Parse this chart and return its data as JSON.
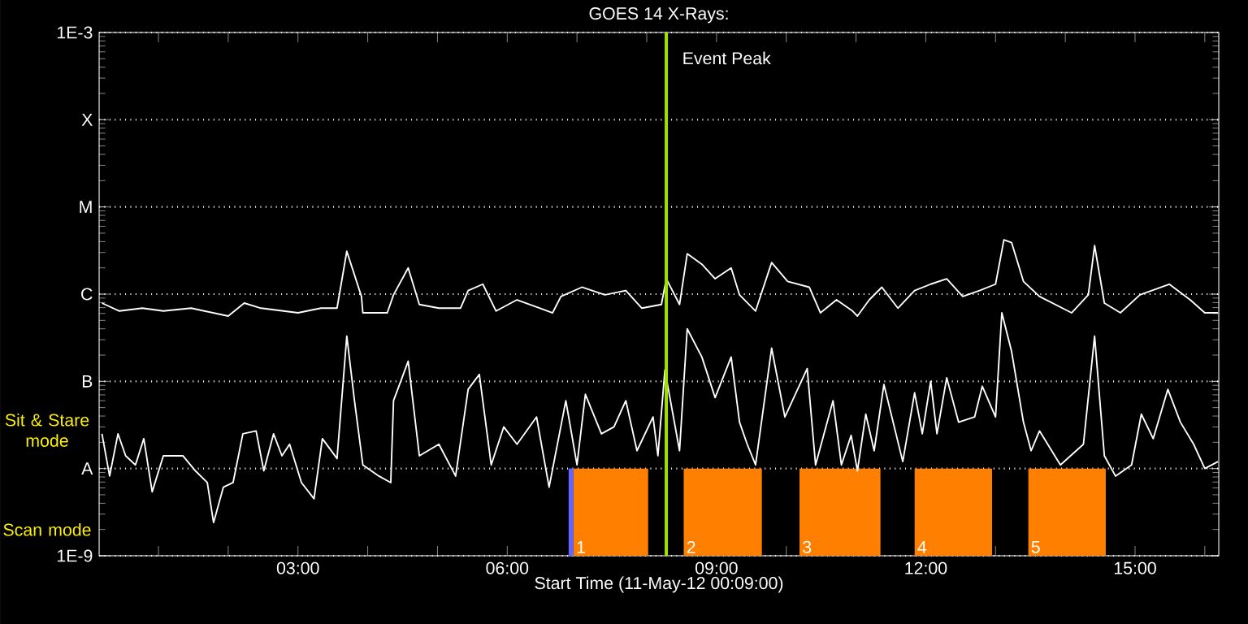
{
  "chart_data": {
    "type": "line",
    "title": "GOES 14 X-Rays:",
    "xlabel": "Start Time (11-May-12 00:09:00)",
    "xlim": [
      0.15,
      16.2
    ],
    "ylim": [
      1e-09,
      0.001
    ],
    "log": true,
    "grid": "y",
    "line_style": "solid",
    "xticks": [
      {
        "value": 1,
        "label": null
      },
      {
        "value": 2,
        "label": null
      },
      {
        "value": 3,
        "label": "03:00"
      },
      {
        "value": 4,
        "label": null
      },
      {
        "value": 5,
        "label": null
      },
      {
        "value": 6,
        "label": "06:00"
      },
      {
        "value": 7,
        "label": null
      },
      {
        "value": 8,
        "label": null
      },
      {
        "value": 9,
        "label": "09:00"
      },
      {
        "value": 10,
        "label": null
      },
      {
        "value": 11,
        "label": null
      },
      {
        "value": 12,
        "label": "12:00"
      },
      {
        "value": 13,
        "label": null
      },
      {
        "value": 14,
        "label": null
      },
      {
        "value": 15,
        "label": "15:00"
      },
      {
        "value": 16,
        "label": null
      }
    ],
    "yticks": [
      {
        "value": 1e-09,
        "label": "1E-9"
      },
      {
        "value": 1e-08,
        "label": "A"
      },
      {
        "value": 1e-07,
        "label": "B"
      },
      {
        "value": 1e-06,
        "label": "C"
      },
      {
        "value": 1e-05,
        "label": "M"
      },
      {
        "value": 0.0001,
        "label": "X"
      },
      {
        "value": 0.001,
        "label": "1E-3"
      }
    ],
    "series": [
      {
        "color": "#ffffff",
        "x": [
          0.19,
          0.44,
          0.77,
          1.07,
          1.47,
          2.0,
          2.23,
          2.47,
          3.0,
          3.33,
          3.56,
          3.7,
          3.91,
          3.93,
          4.28,
          4.37,
          4.58,
          4.74,
          5.02,
          5.33,
          5.44,
          5.65,
          5.84,
          6.14,
          6.47,
          6.65,
          6.77,
          7.07,
          7.4,
          7.7,
          7.93,
          8.21,
          8.28,
          8.47,
          8.58,
          8.79,
          8.98,
          9.21,
          9.33,
          9.56,
          9.79,
          10.02,
          10.33,
          10.49,
          10.72,
          10.95,
          11.02,
          11.19,
          11.37,
          11.6,
          11.84,
          12.07,
          12.3,
          12.53,
          12.77,
          13.0,
          13.12,
          13.23,
          13.4,
          13.63,
          14.09,
          14.33,
          14.42,
          14.56,
          14.79,
          15.07,
          15.49,
          15.79,
          16.0,
          16.19
        ],
        "values": [
          7.9e-07,
          6.4e-07,
          6.9e-07,
          6.4e-07,
          6.9e-07,
          5.6e-07,
          7.9e-07,
          6.9e-07,
          6.1e-07,
          6.9e-07,
          6.9e-07,
          3.1e-06,
          9.4e-07,
          6.1e-07,
          6.1e-07,
          9.8e-07,
          2e-06,
          7.6e-07,
          6.9e-07,
          6.9e-07,
          1.1e-06,
          1.3e-06,
          6.4e-07,
          8.6e-07,
          6.9e-07,
          6.1e-07,
          9.4e-07,
          1.2e-06,
          9.8e-07,
          1.1e-06,
          6.9e-07,
          7.6e-07,
          1.5e-06,
          7.6e-07,
          2.9e-06,
          2.2e-06,
          1.5e-06,
          2e-06,
          9.8e-07,
          6.4e-07,
          2.3e-06,
          1.4e-06,
          1.2e-06,
          6.1e-07,
          8.6e-07,
          6.4e-07,
          5.6e-07,
          8.6e-07,
          1.2e-06,
          6.9e-07,
          1.1e-06,
          1.3e-06,
          1.5e-06,
          9.4e-07,
          1.1e-06,
          1.3e-06,
          4.2e-06,
          3.9e-06,
          1.4e-06,
          9.4e-07,
          6.1e-07,
          9.8e-07,
          3.6e-06,
          7.9e-07,
          6.1e-07,
          9.8e-07,
          1.3e-06,
          8.6e-07,
          6.1e-07,
          6.1e-07
        ]
      },
      {
        "color": "#ffffff",
        "x": [
          0.19,
          0.3,
          0.42,
          0.53,
          0.67,
          0.79,
          0.91,
          1.07,
          1.35,
          1.53,
          1.7,
          1.79,
          1.93,
          2.07,
          2.21,
          2.4,
          2.51,
          2.65,
          2.77,
          2.88,
          3.05,
          3.23,
          3.35,
          3.56,
          3.7,
          3.81,
          3.93,
          4.16,
          4.33,
          4.37,
          4.58,
          4.74,
          5.02,
          5.26,
          5.44,
          5.6,
          5.77,
          5.95,
          6.14,
          6.42,
          6.6,
          6.84,
          7.0,
          7.12,
          7.35,
          7.53,
          7.7,
          7.86,
          8.09,
          8.16,
          8.26,
          8.47,
          8.58,
          8.79,
          8.98,
          9.21,
          9.33,
          9.44,
          9.56,
          9.79,
          9.98,
          10.3,
          10.42,
          10.67,
          10.79,
          10.93,
          11.02,
          11.14,
          11.26,
          11.4,
          11.67,
          11.84,
          11.95,
          12.07,
          12.16,
          12.3,
          12.47,
          12.7,
          12.81,
          13.0,
          13.09,
          13.23,
          13.4,
          13.51,
          13.63,
          13.93,
          14.26,
          14.42,
          14.56,
          14.72,
          14.95,
          15.09,
          15.26,
          15.47,
          15.65,
          15.84,
          16.0,
          16.19
        ],
        "values": [
          2.5e-08,
          8.2e-09,
          2.5e-08,
          1.4e-08,
          1.1e-08,
          2.2e-08,
          5.4e-09,
          1.4e-08,
          1.4e-08,
          9.4e-09,
          6.9e-09,
          2.4e-09,
          6.1e-09,
          6.9e-09,
          2.5e-08,
          2.7e-08,
          9.4e-09,
          2.5e-08,
          1.4e-08,
          1.9e-08,
          6.9e-09,
          4.5e-09,
          2.2e-08,
          1.3e-08,
          3.3e-07,
          6e-08,
          1.1e-08,
          8.2e-09,
          6.9e-09,
          6e-08,
          1.7e-07,
          1.4e-08,
          1.9e-08,
          8.2e-09,
          8.1e-08,
          1.2e-07,
          1.1e-08,
          3e-08,
          1.9e-08,
          3.9e-08,
          6.1e-09,
          6e-08,
          1.1e-08,
          7.1e-08,
          2.5e-08,
          3e-08,
          6e-08,
          1.6e-08,
          3.9e-08,
          1.4e-08,
          1.35e-07,
          1.6e-08,
          4e-07,
          1.9e-07,
          6.5e-08,
          1.9e-07,
          3.4e-08,
          1.9e-08,
          1.1e-08,
          2.4e-07,
          3.9e-08,
          1.4e-07,
          1.1e-08,
          6e-08,
          1.1e-08,
          2.4e-08,
          9.4e-09,
          4.2e-08,
          1.6e-08,
          9.2e-08,
          1.2e-08,
          7.4e-08,
          2.5e-08,
          1e-07,
          2.5e-08,
          1.1e-07,
          3.4e-08,
          3.9e-08,
          8.8e-08,
          3.9e-08,
          6.1e-07,
          2.2e-07,
          3.4e-08,
          1.6e-08,
          2.7e-08,
          1.1e-08,
          1.9e-08,
          3.3e-07,
          1.4e-08,
          8.2e-09,
          1.1e-08,
          4.2e-08,
          2.2e-08,
          8.1e-08,
          3.4e-08,
          1.9e-08,
          1e-08,
          1.2e-08
        ]
      }
    ],
    "ref_lines": [
      {
        "axis": "x",
        "value": 8.28,
        "label": "Event Peak",
        "color": "#a0e000"
      }
    ],
    "bands": [
      {
        "axis": "x",
        "from": 6.88,
        "to": 6.95,
        "color": "#6464ff"
      },
      {
        "axis": "x",
        "from": 6.95,
        "to": 8.02,
        "label": "1",
        "color": "#ff8000"
      },
      {
        "axis": "x",
        "from": 8.53,
        "to": 9.65,
        "label": "2",
        "color": "#ff8000"
      },
      {
        "axis": "x",
        "from": 10.19,
        "to": 11.35,
        "label": "3",
        "color": "#ff8000"
      },
      {
        "axis": "x",
        "from": 11.84,
        "to": 12.95,
        "label": "4",
        "color": "#ff8000"
      },
      {
        "axis": "x",
        "from": 13.47,
        "to": 14.58,
        "label": "5",
        "color": "#ff8000"
      }
    ],
    "annotations": [
      "Sit & Stare mode",
      "Scan mode"
    ]
  }
}
